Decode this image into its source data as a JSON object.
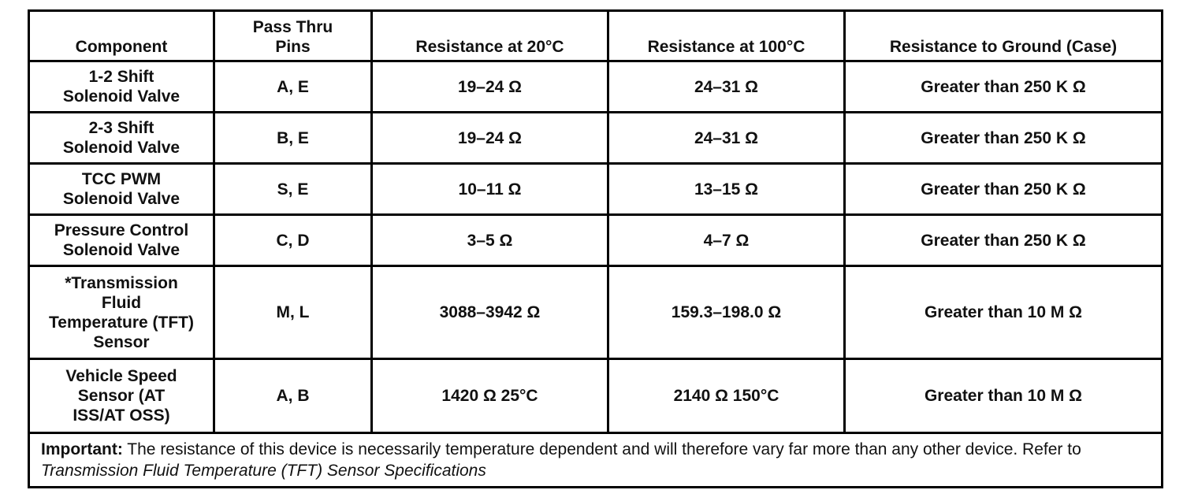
{
  "table": {
    "header": [
      "Component",
      "Pass Thru\nPins",
      "Resistance at 20°C",
      "Resistance at 100°C",
      "Resistance to Ground (Case)"
    ],
    "rows": [
      [
        "1-2 Shift\nSolenoid Valve",
        "A, E",
        "19–24 Ω",
        "24–31 Ω",
        "Greater than 250 K Ω"
      ],
      [
        "2-3 Shift\nSolenoid Valve",
        "B, E",
        "19–24 Ω",
        "24–31 Ω",
        "Greater than 250 K Ω"
      ],
      [
        "TCC PWM\nSolenoid Valve",
        "S, E",
        "10–11 Ω",
        "13–15 Ω",
        "Greater than 250 K Ω"
      ],
      [
        "Pressure Control\nSolenoid Valve",
        "C, D",
        "3–5 Ω",
        "4–7 Ω",
        "Greater than 250 K Ω"
      ],
      [
        "*Transmission\nFluid\nTemperature (TFT)\nSensor",
        "M, L",
        "3088–3942 Ω",
        "159.3–198.0 Ω",
        "Greater than 10 M Ω"
      ],
      [
        "Vehicle Speed\nSensor (AT\nISS/AT OSS)",
        "A, B",
        "1420 Ω 25°C",
        "2140 Ω 150°C",
        "Greater than 10 M Ω"
      ]
    ],
    "note": {
      "label": "Important:",
      "text": "The resistance of this device is necessarily temperature dependent and will therefore vary far more than any other device. Refer to",
      "reference": "Transmission Fluid Temperature (TFT) Sensor Specifications"
    }
  }
}
